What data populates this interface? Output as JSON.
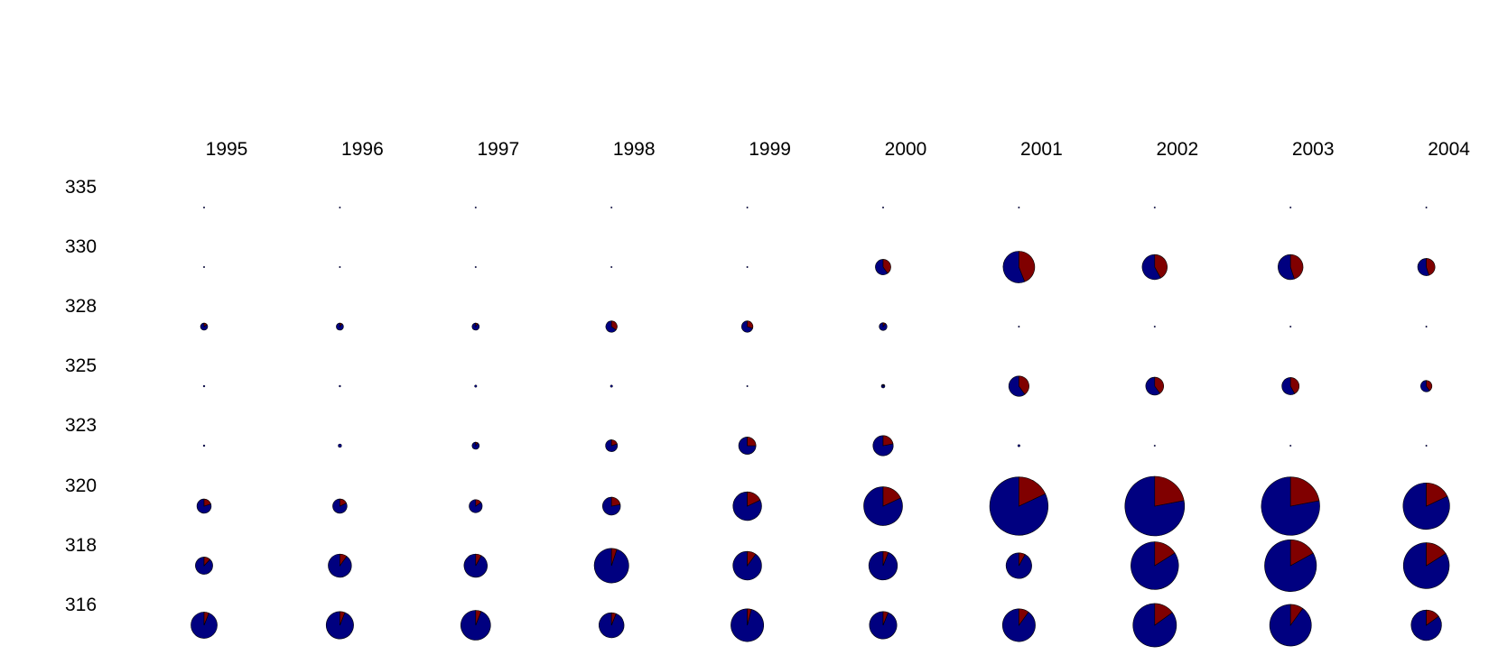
{
  "chart_data": {
    "type": "pie",
    "title": "",
    "columns": [
      "1995",
      "1996",
      "1997",
      "1998",
      "1999",
      "2000",
      "2001",
      "2002",
      "2003",
      "2004"
    ],
    "rows": [
      "335",
      "330",
      "328",
      "325",
      "323",
      "320",
      "318",
      "316"
    ],
    "series": [
      {
        "name": "",
        "color": "#000080"
      },
      {
        "name": "",
        "color": "#800000"
      }
    ],
    "size_unit": "relative circle size (largest = 1.0)",
    "cells": [
      [
        {
          "size": 0.02,
          "frac2": 0.0
        },
        {
          "size": 0.02,
          "frac2": 0.0
        },
        {
          "size": 0.02,
          "frac2": 0.0
        },
        {
          "size": 0.02,
          "frac2": 0.0
        },
        {
          "size": 0.02,
          "frac2": 0.0
        },
        {
          "size": 0.02,
          "frac2": 0.0
        },
        {
          "size": 0.02,
          "frac2": 0.0
        },
        {
          "size": 0.02,
          "frac2": 0.0
        },
        {
          "size": 0.02,
          "frac2": 0.0
        },
        {
          "size": 0.02,
          "frac2": 0.0
        }
      ],
      [
        {
          "size": 0.02,
          "frac2": 0.0
        },
        {
          "size": 0.02,
          "frac2": 0.0
        },
        {
          "size": 0.02,
          "frac2": 0.0
        },
        {
          "size": 0.02,
          "frac2": 0.0
        },
        {
          "size": 0.02,
          "frac2": 0.0
        },
        {
          "size": 0.26,
          "frac2": 0.4
        },
        {
          "size": 0.53,
          "frac2": 0.44
        },
        {
          "size": 0.42,
          "frac2": 0.42
        },
        {
          "size": 0.42,
          "frac2": 0.45
        },
        {
          "size": 0.29,
          "frac2": 0.45
        }
      ],
      [
        {
          "size": 0.12,
          "frac2": 0.15
        },
        {
          "size": 0.12,
          "frac2": 0.1
        },
        {
          "size": 0.12,
          "frac2": 0.1
        },
        {
          "size": 0.19,
          "frac2": 0.35
        },
        {
          "size": 0.19,
          "frac2": 0.3
        },
        {
          "size": 0.13,
          "frac2": 0.1
        },
        {
          "size": 0.02,
          "frac2": 0.0
        },
        {
          "size": 0.02,
          "frac2": 0.0
        },
        {
          "size": 0.02,
          "frac2": 0.0
        },
        {
          "size": 0.02,
          "frac2": 0.0
        }
      ],
      [
        {
          "size": 0.03,
          "frac2": 0.0
        },
        {
          "size": 0.03,
          "frac2": 0.0
        },
        {
          "size": 0.04,
          "frac2": 0.0
        },
        {
          "size": 0.04,
          "frac2": 0.0
        },
        {
          "size": 0.02,
          "frac2": 0.0
        },
        {
          "size": 0.06,
          "frac2": 0.1
        },
        {
          "size": 0.34,
          "frac2": 0.4
        },
        {
          "size": 0.3,
          "frac2": 0.4
        },
        {
          "size": 0.29,
          "frac2": 0.42
        },
        {
          "size": 0.19,
          "frac2": 0.4
        }
      ],
      [
        {
          "size": 0.03,
          "frac2": 0.0
        },
        {
          "size": 0.06,
          "frac2": 0.0
        },
        {
          "size": 0.12,
          "frac2": 0.1
        },
        {
          "size": 0.2,
          "frac2": 0.2
        },
        {
          "size": 0.29,
          "frac2": 0.25
        },
        {
          "size": 0.34,
          "frac2": 0.22
        },
        {
          "size": 0.04,
          "frac2": 0.0
        },
        {
          "size": 0.02,
          "frac2": 0.0
        },
        {
          "size": 0.02,
          "frac2": 0.0
        },
        {
          "size": 0.02,
          "frac2": 0.0
        }
      ],
      [
        {
          "size": 0.24,
          "frac2": 0.2
        },
        {
          "size": 0.24,
          "frac2": 0.18
        },
        {
          "size": 0.22,
          "frac2": 0.15
        },
        {
          "size": 0.3,
          "frac2": 0.22
        },
        {
          "size": 0.48,
          "frac2": 0.18
        },
        {
          "size": 0.65,
          "frac2": 0.18
        },
        {
          "size": 0.98,
          "frac2": 0.18
        },
        {
          "size": 1.0,
          "frac2": 0.22
        },
        {
          "size": 0.98,
          "frac2": 0.22
        },
        {
          "size": 0.78,
          "frac2": 0.18
        }
      ],
      [
        {
          "size": 0.29,
          "frac2": 0.12
        },
        {
          "size": 0.39,
          "frac2": 0.1
        },
        {
          "size": 0.39,
          "frac2": 0.08
        },
        {
          "size": 0.58,
          "frac2": 0.05
        },
        {
          "size": 0.48,
          "frac2": 0.1
        },
        {
          "size": 0.48,
          "frac2": 0.06
        },
        {
          "size": 0.43,
          "frac2": 0.08
        },
        {
          "size": 0.8,
          "frac2": 0.16
        },
        {
          "size": 0.87,
          "frac2": 0.17
        },
        {
          "size": 0.77,
          "frac2": 0.16
        }
      ],
      [
        {
          "size": 0.44,
          "frac2": 0.06
        },
        {
          "size": 0.46,
          "frac2": 0.06
        },
        {
          "size": 0.5,
          "frac2": 0.06
        },
        {
          "size": 0.42,
          "frac2": 0.06
        },
        {
          "size": 0.55,
          "frac2": 0.04
        },
        {
          "size": 0.46,
          "frac2": 0.06
        },
        {
          "size": 0.55,
          "frac2": 0.1
        },
        {
          "size": 0.73,
          "frac2": 0.15
        },
        {
          "size": 0.7,
          "frac2": 0.1
        },
        {
          "size": 0.51,
          "frac2": 0.15
        }
      ]
    ],
    "grid": false,
    "legend": "none",
    "colors": {
      "series1": "#000080",
      "series2": "#800000",
      "outline": "#000000"
    }
  }
}
